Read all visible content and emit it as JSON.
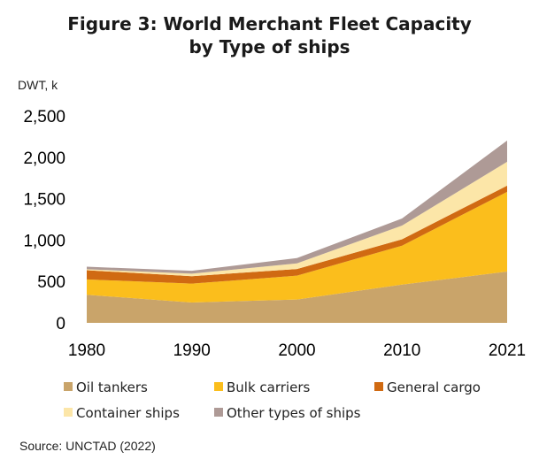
{
  "chart_data": {
    "type": "area",
    "stacked": true,
    "title_line1": "Figure 3: World Merchant Fleet Capacity",
    "title_line2": "by Type of ships",
    "unit_label": "DWT, k",
    "source": "Source: UNCTAD (2022)",
    "x": [
      "1980",
      "1990",
      "2000",
      "2010",
      "2021"
    ],
    "yticks": [
      "0",
      "500",
      "1,000",
      "1,500",
      "2,000",
      "2,500"
    ],
    "ytick_values": [
      0,
      500,
      1000,
      1500,
      2000,
      2500
    ],
    "ylim": [
      0,
      2500
    ],
    "grid": false,
    "legend_position": "bottom",
    "series": [
      {
        "name": "Oil tankers",
        "color": "#C9A46A",
        "values": [
          339,
          246,
          282,
          462,
          620
        ]
      },
      {
        "name": "Bulk carriers",
        "color": "#FBBE1C",
        "values": [
          186,
          228,
          288,
          470,
          963
        ]
      },
      {
        "name": "General cargo",
        "color": "#D06A12",
        "values": [
          110,
          90,
          80,
          78,
          74
        ]
      },
      {
        "name": "Container ships",
        "color": "#FCE6A8",
        "values": [
          13,
          30,
          68,
          165,
          289
        ]
      },
      {
        "name": "Other types of ships",
        "color": "#AE9A96",
        "values": [
          30,
          35,
          65,
          85,
          256
        ]
      }
    ]
  }
}
